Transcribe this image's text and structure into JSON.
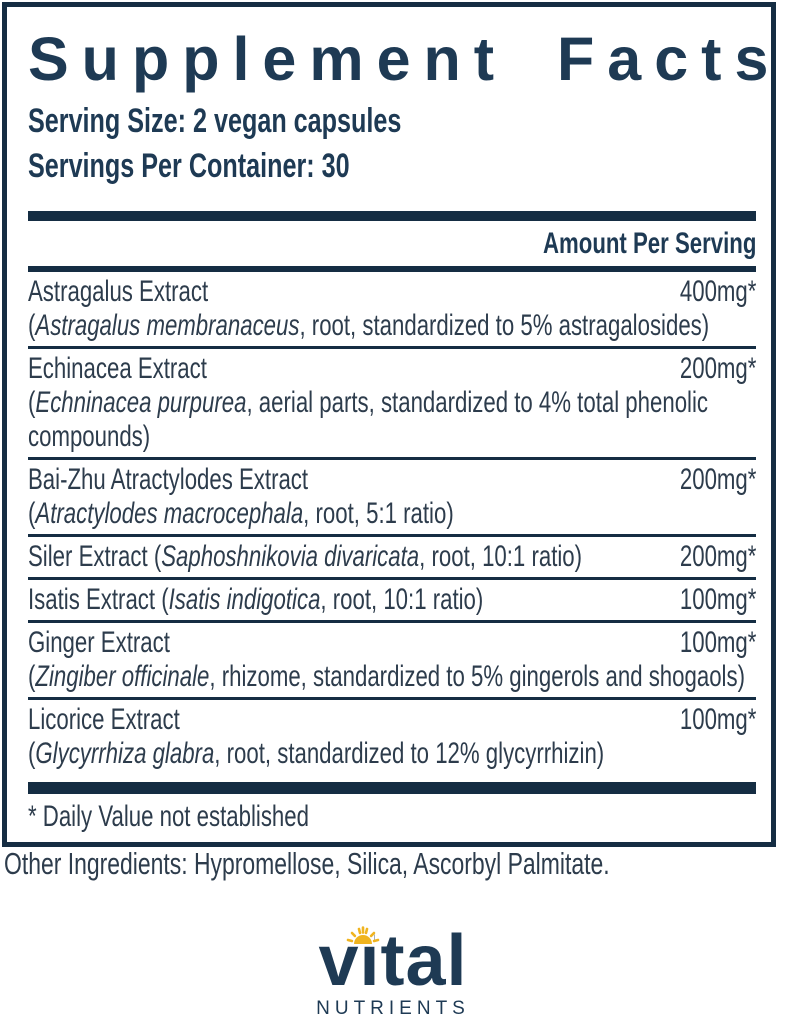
{
  "label": {
    "title": "Supplement Facts",
    "serving_size": "Serving Size: 2 vegan capsules",
    "servings_per_container": "Servings Per Container: 30",
    "amount_header": "Amount Per Serving",
    "footnote": "* Daily Value not established",
    "rows": [
      {
        "name": [
          {
            "text": "Astragalus Extract",
            "italic": false
          }
        ],
        "amount": "400mg*",
        "details": [
          [
            {
              "text": "(",
              "italic": false
            },
            {
              "text": "Astragalus membranaceus",
              "italic": true
            },
            {
              "text": ", root, standardized to 5% astragalosides)",
              "italic": false
            }
          ]
        ]
      },
      {
        "name": [
          {
            "text": "Echinacea Extract",
            "italic": false
          }
        ],
        "amount": "200mg*",
        "details": [
          [
            {
              "text": "(",
              "italic": false
            },
            {
              "text": "Echninacea purpurea",
              "italic": true
            },
            {
              "text": ", aerial parts, standardized to 4% total phenolic",
              "italic": false
            }
          ],
          [
            {
              "text": "compounds)",
              "italic": false
            }
          ]
        ]
      },
      {
        "name": [
          {
            "text": "Bai-Zhu Atractylodes Extract",
            "italic": false
          }
        ],
        "amount": "200mg*",
        "details": [
          [
            {
              "text": "(",
              "italic": false
            },
            {
              "text": "Atractylodes macrocephala",
              "italic": true
            },
            {
              "text": ", root, 5:1 ratio)",
              "italic": false
            }
          ]
        ]
      },
      {
        "name": [
          {
            "text": "Siler Extract (",
            "italic": false
          },
          {
            "text": "Saphoshnikovia divaricata",
            "italic": true
          },
          {
            "text": ", root, 10:1 ratio)",
            "italic": false
          }
        ],
        "amount": "200mg*",
        "details": []
      },
      {
        "name": [
          {
            "text": "Isatis Extract (",
            "italic": false
          },
          {
            "text": "Isatis indigotica",
            "italic": true
          },
          {
            "text": ", root, 10:1 ratio)",
            "italic": false
          }
        ],
        "amount": "100mg*",
        "details": []
      },
      {
        "name": [
          {
            "text": "Ginger Extract",
            "italic": false
          }
        ],
        "amount": "100mg*",
        "details": [
          [
            {
              "text": "(",
              "italic": false
            },
            {
              "text": "Zingiber officinale",
              "italic": true
            },
            {
              "text": ", rhizome, standardized to 5% gingerols and shogaols)",
              "italic": false
            }
          ]
        ]
      },
      {
        "name": [
          {
            "text": "Licorice Extract",
            "italic": false
          }
        ],
        "amount": "100mg*",
        "details": [
          [
            {
              "text": "(",
              "italic": false
            },
            {
              "text": "Glycyrrhiza glabra",
              "italic": true
            },
            {
              "text": ", root, standardized to 12% glycyrrhizin)",
              "italic": false
            }
          ]
        ]
      }
    ]
  },
  "other_ingredients": "Other Ingredients: Hypromellose, Silica, Ascorbyl Palmitate.",
  "logo": {
    "brand": "vital",
    "tagline": "NUTRIENTS",
    "icon": "sun-icon"
  },
  "colors": {
    "navy": "#1e3a54",
    "bar_navy": "#152d43",
    "body_text": "#2d3c4c",
    "sun_gold": "#f0b41f"
  }
}
